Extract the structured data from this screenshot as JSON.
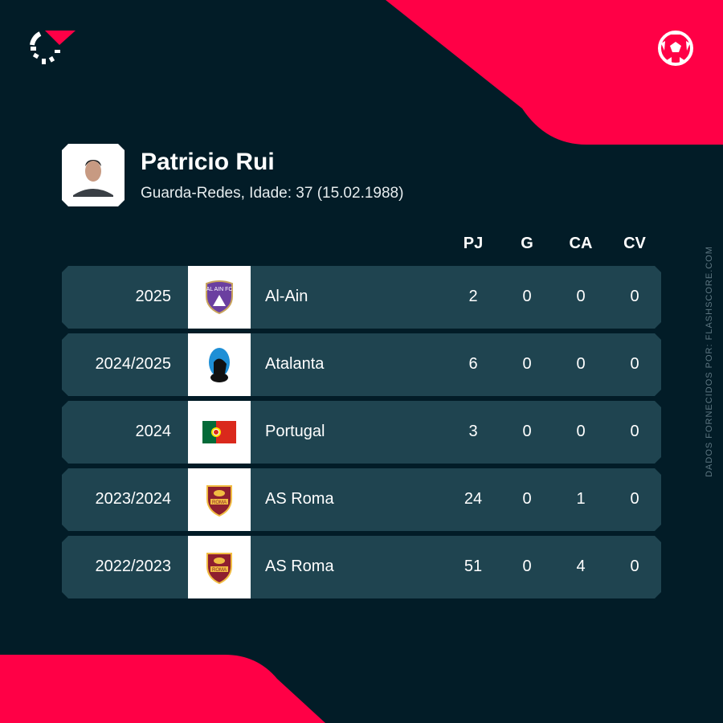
{
  "brand": {
    "logo_icon": "flashscore-logo-icon",
    "sport_icon": "football-icon",
    "accent": "#ff0046",
    "background": "#021c27",
    "row_color": "#1f4450"
  },
  "player": {
    "name": "Patricio Rui",
    "subtitle": "Guarda-Redes, Idade: 37 (15.02.1988)"
  },
  "columns": [
    "PJ",
    "G",
    "CA",
    "CV"
  ],
  "rows": [
    {
      "season": "2025",
      "team": "Al-Ain",
      "logo": "al-ain-crest",
      "stats": [
        "2",
        "0",
        "0",
        "0"
      ]
    },
    {
      "season": "2024/2025",
      "team": "Atalanta",
      "logo": "atalanta-crest",
      "stats": [
        "6",
        "0",
        "0",
        "0"
      ]
    },
    {
      "season": "2024",
      "team": "Portugal",
      "logo": "portugal-flag",
      "stats": [
        "3",
        "0",
        "0",
        "0"
      ]
    },
    {
      "season": "2023/2024",
      "team": "AS Roma",
      "logo": "as-roma-crest",
      "stats": [
        "24",
        "0",
        "1",
        "0"
      ]
    },
    {
      "season": "2022/2023",
      "team": "AS Roma",
      "logo": "as-roma-crest",
      "stats": [
        "51",
        "0",
        "4",
        "0"
      ]
    }
  ],
  "credit": "DADOS FORNECIDOS POR: FLASHSCORE.COM"
}
